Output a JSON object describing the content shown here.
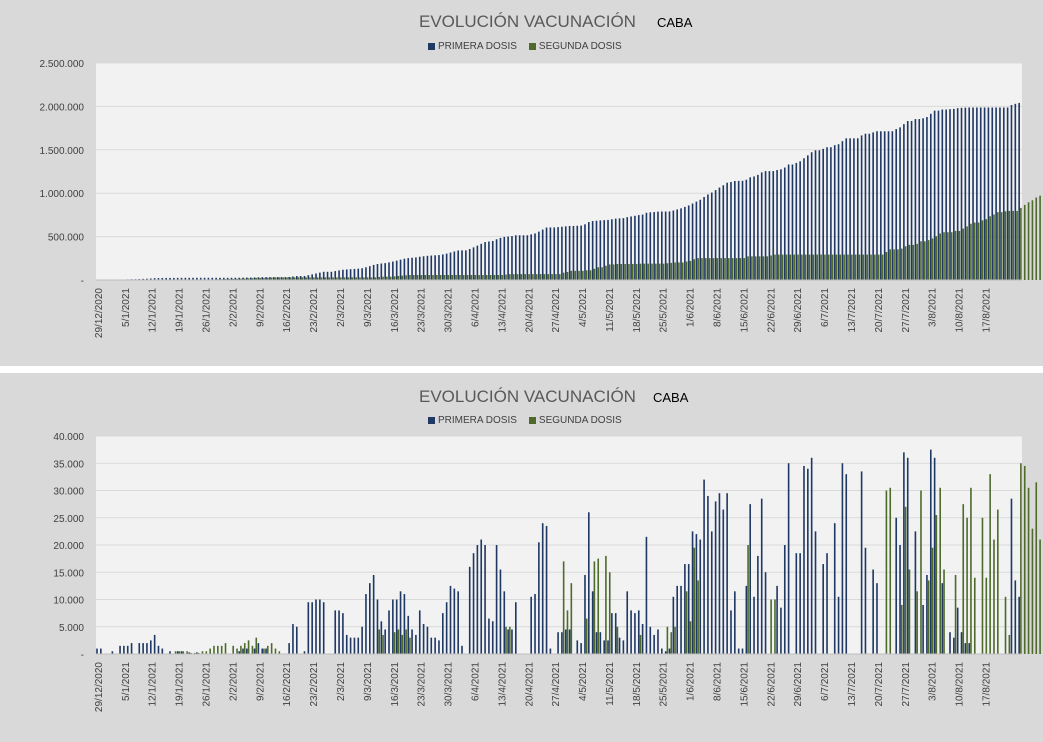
{
  "colors": {
    "primera": "#1f3864",
    "segunda": "#4f6b2c",
    "plot_bg": "#f2f2f2",
    "panel_bg": "#d9d9d9",
    "grid": "#d9d9d9"
  },
  "chart_data": [
    {
      "type": "bar",
      "title": "EVOLUCIÓN VACUNACIÓN",
      "subtitle": "CABA",
      "legend": "top-center",
      "grid": true,
      "ylim": [
        0,
        2500000
      ],
      "yticks": [
        "-",
        "500.000",
        "1.000.000",
        "1.500.000",
        "2.000.000",
        "2.500.000"
      ],
      "ytick_values": [
        0,
        500000,
        1000000,
        1500000,
        2000000,
        2500000
      ],
      "xticks": [
        "29/12/2020",
        "5/1/2021",
        "12/1/2021",
        "19/1/2021",
        "26/1/2021",
        "2/2/2021",
        "9/2/2021",
        "16/2/2021",
        "23/2/2021",
        "2/3/2021",
        "9/3/2021",
        "16/3/2021",
        "23/3/2021",
        "30/3/2021",
        "6/4/2021",
        "13/4/2021",
        "20/4/2021",
        "27/4/2021",
        "4/5/2021",
        "11/5/2021",
        "18/5/2021",
        "25/5/2021",
        "1/6/2021",
        "8/6/2021",
        "15/6/2021",
        "22/6/2021",
        "29/6/2021",
        "6/7/2021",
        "13/7/2021",
        "20/7/2021",
        "27/7/2021",
        "3/8/2021",
        "10/8/2021",
        "17/8/2021"
      ],
      "cumulative_from": 1,
      "series": [
        {
          "name": "PRIMERA DOSIS"
        },
        {
          "name": "SEGUNDA DOSIS"
        }
      ]
    },
    {
      "type": "bar",
      "title": "EVOLUCIÓN VACUNACIÓN",
      "subtitle": "CABA",
      "legend": "top-center",
      "grid": true,
      "ylim": [
        0,
        40000
      ],
      "yticks": [
        "-",
        "5.000",
        "10.000",
        "15.000",
        "20.000",
        "25.000",
        "30.000",
        "35.000",
        "40.000"
      ],
      "ytick_values": [
        0,
        5000,
        10000,
        15000,
        20000,
        25000,
        30000,
        35000,
        40000
      ],
      "xticks": [
        "29/12/2020",
        "5/1/2021",
        "12/1/2021",
        "19/1/2021",
        "26/1/2021",
        "2/2/2021",
        "9/2/2021",
        "16/2/2021",
        "23/2/2021",
        "2/3/2021",
        "9/3/2021",
        "16/3/2021",
        "23/3/2021",
        "30/3/2021",
        "6/4/2021",
        "13/4/2021",
        "20/4/2021",
        "27/4/2021",
        "4/5/2021",
        "11/5/2021",
        "18/5/2021",
        "25/5/2021",
        "1/6/2021",
        "8/6/2021",
        "15/6/2021",
        "22/6/2021",
        "29/6/2021",
        "6/7/2021",
        "13/7/2021",
        "20/7/2021",
        "27/7/2021",
        "3/8/2021",
        "10/8/2021",
        "17/8/2021"
      ],
      "series": [
        {
          "name": "PRIMERA DOSIS",
          "values": [
            1000,
            1000,
            0,
            0,
            500,
            0,
            1500,
            1500,
            1500,
            2000,
            0,
            2000,
            2000,
            2000,
            2500,
            3500,
            1500,
            1000,
            0,
            500,
            0,
            500,
            500,
            0,
            300,
            0,
            300,
            0,
            0,
            0,
            0,
            0,
            0,
            0,
            0,
            0,
            0,
            500,
            1000,
            1000,
            0,
            1000,
            2000,
            1000,
            1000,
            0,
            0,
            0,
            0,
            0,
            2000,
            5500,
            5000,
            0,
            500,
            9500,
            9500,
            10000,
            10000,
            9500,
            0,
            0,
            8000,
            8000,
            7500,
            3500,
            3000,
            3000,
            3000,
            5000,
            11000,
            13000,
            14500,
            10000,
            6000,
            4500,
            8000,
            10000,
            10000,
            11500,
            11000,
            7000,
            4500,
            3500,
            8000,
            5500,
            5000,
            3000,
            3000,
            2500,
            7500,
            9500,
            12500,
            12000,
            11500,
            1500,
            0,
            16000,
            18500,
            20000,
            21000,
            20000,
            6500,
            6000,
            20000,
            15500,
            11500,
            4500,
            4500,
            9500,
            0,
            0,
            0,
            10500,
            11000,
            20500,
            24000,
            23500,
            1000,
            0,
            4000,
            4000,
            4500,
            4500,
            0,
            2500,
            2000,
            14500,
            26000,
            11500,
            4000,
            4000,
            2500,
            2500,
            7500,
            7500,
            3000,
            2500,
            11500,
            8000,
            7500,
            8000,
            5500,
            21500,
            5000,
            3500,
            4500,
            1000,
            500,
            1000,
            10500,
            12500,
            12500,
            16500,
            16500,
            22500,
            22000,
            21000,
            32000,
            29000,
            22500,
            28000,
            29500,
            26500,
            29500,
            8000,
            11500,
            1000,
            1000,
            12500,
            27500,
            10500,
            18000,
            28500,
            15000,
            0,
            0,
            12500,
            8500,
            20000,
            35000,
            0,
            18500,
            18500,
            34500,
            34000,
            36000,
            22500,
            0,
            16500,
            18500,
            0,
            24000,
            10500,
            35000,
            33000,
            0,
            0,
            0,
            33500,
            19500,
            0,
            15500,
            13000,
            0,
            0,
            0,
            0,
            25000,
            20000,
            37000,
            36000,
            0,
            22500,
            0,
            9000,
            14500,
            37500,
            36000,
            0,
            13000,
            0,
            4000,
            3000,
            8500,
            4000,
            2000,
            2000,
            0,
            0,
            0,
            0,
            0,
            0,
            0,
            0,
            0,
            0,
            28500,
            13500,
            10500
          ]
        },
        {
          "name": "SEGUNDA DOSIS",
          "values": [
            0,
            0,
            0,
            0,
            0,
            0,
            0,
            0,
            0,
            0,
            0,
            0,
            0,
            0,
            0,
            0,
            0,
            0,
            0,
            0,
            500,
            500,
            500,
            500,
            200,
            200,
            200,
            500,
            500,
            1000,
            1500,
            1500,
            1500,
            2000,
            0,
            1500,
            1000,
            1500,
            2000,
            2500,
            1500,
            3000,
            0,
            1000,
            1500,
            2000,
            1000,
            500,
            0,
            0,
            0,
            0,
            0,
            0,
            0,
            0,
            0,
            0,
            0,
            0,
            0,
            0,
            0,
            0,
            0,
            0,
            0,
            0,
            0,
            0,
            0,
            0,
            0,
            4500,
            3500,
            0,
            0,
            4000,
            4500,
            3500,
            4500,
            3000,
            0,
            0,
            0,
            0,
            0,
            0,
            0,
            0,
            0,
            0,
            0,
            0,
            0,
            0,
            0,
            0,
            0,
            0,
            0,
            0,
            0,
            0,
            0,
            0,
            5000,
            5000,
            0,
            0,
            0,
            0,
            0,
            0,
            0,
            0,
            0,
            0,
            0,
            0,
            0,
            17000,
            8000,
            13000,
            0,
            0,
            0,
            6500,
            0,
            17000,
            17500,
            0,
            18000,
            15000,
            0,
            5000,
            0,
            0,
            0,
            0,
            0,
            3500,
            0,
            0,
            0,
            0,
            0,
            0,
            5000,
            4000,
            5000,
            0,
            0,
            11500,
            6000,
            19500,
            13500,
            0,
            0,
            0,
            0,
            0,
            0,
            0,
            0,
            0,
            0,
            0,
            0,
            20000,
            0,
            0,
            0,
            0,
            0,
            10000,
            10000,
            0,
            0,
            0,
            0,
            0,
            0,
            0,
            0,
            0,
            0,
            0,
            0,
            0,
            0,
            0,
            0,
            0,
            0,
            0,
            0,
            0,
            0,
            0,
            0,
            0,
            0,
            0,
            0,
            30000,
            30500,
            0,
            0,
            9000,
            27000,
            15500,
            0,
            11500,
            30000,
            0,
            13500,
            19500,
            25500,
            30500,
            15500,
            0,
            0,
            14500,
            0,
            27500,
            25000,
            30500,
            14000,
            0,
            25000,
            14000,
            33000,
            21000,
            26500,
            0,
            10500,
            3500,
            0,
            0,
            35000,
            34500,
            30500,
            23000,
            31500,
            21000,
            24500,
            14000,
            10500,
            8000
          ]
        }
      ]
    }
  ]
}
